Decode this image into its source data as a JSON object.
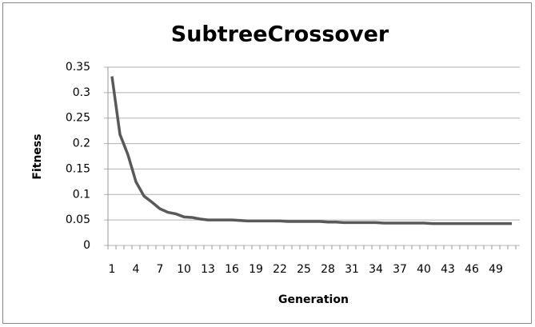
{
  "chart_data": {
    "type": "line",
    "title": "SubtreeCrossover",
    "x_label": "Generation",
    "y_label": "Fitness",
    "categories": [
      "1",
      null,
      null,
      "4",
      null,
      null,
      "7",
      null,
      null,
      "10",
      null,
      null,
      "13",
      null,
      null,
      "16",
      null,
      null,
      "19",
      null,
      null,
      "22",
      null,
      null,
      "25",
      null,
      null,
      "28",
      null,
      null,
      "31",
      null,
      null,
      "34",
      null,
      null,
      "37",
      null,
      null,
      "40",
      null,
      null,
      "43",
      null,
      null,
      "46",
      null,
      null,
      "49",
      null,
      null
    ],
    "series": [
      {
        "name": "Fitness",
        "color": "#595959",
        "values": [
          0.332,
          0.218,
          0.178,
          0.125,
          0.097,
          0.085,
          0.072,
          0.065,
          0.062,
          0.056,
          0.055,
          0.052,
          0.05,
          0.05,
          0.05,
          0.05,
          0.049,
          0.048,
          0.048,
          0.048,
          0.048,
          0.048,
          0.047,
          0.047,
          0.047,
          0.047,
          0.047,
          0.046,
          0.046,
          0.045,
          0.045,
          0.045,
          0.045,
          0.045,
          0.044,
          0.044,
          0.044,
          0.044,
          0.044,
          0.044,
          0.043,
          0.043,
          0.043,
          0.043,
          0.043,
          0.043,
          0.043,
          0.043,
          0.043,
          0.043,
          0.043
        ]
      }
    ],
    "ylim": [
      0,
      0.35
    ],
    "yticks": [
      0,
      0.05,
      0.1,
      0.15,
      0.2,
      0.25,
      0.3,
      0.35
    ],
    "grid": true
  }
}
